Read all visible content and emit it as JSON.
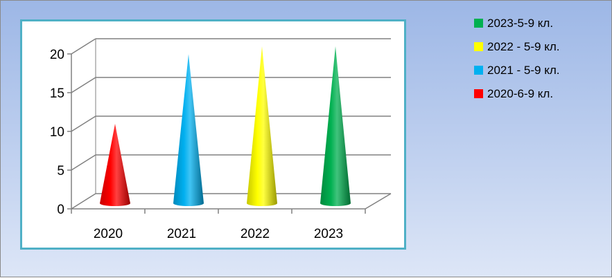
{
  "chart_data": {
    "type": "bar",
    "style": "3d-cone",
    "categories": [
      "2020",
      "2021",
      "2022",
      "2023"
    ],
    "values": [
      10,
      19,
      20,
      20
    ],
    "colors": [
      "#ff0000",
      "#00b0f0",
      "#ffff00",
      "#00b050"
    ],
    "ylim": [
      0,
      20
    ],
    "yticks": [
      "0",
      "5",
      "10",
      "15",
      "20"
    ],
    "grid": true,
    "legend_position": "right",
    "legend": [
      {
        "label": "2023-5-9 кл.",
        "color": "#00b050"
      },
      {
        "label": "2022 - 5-9 кл.",
        "color": "#ffff00"
      },
      {
        "label": "2021 - 5-9 кл.",
        "color": "#00b0f0"
      },
      {
        "label": "2020-6-9 кл.",
        "color": "#ff0000"
      }
    ]
  }
}
